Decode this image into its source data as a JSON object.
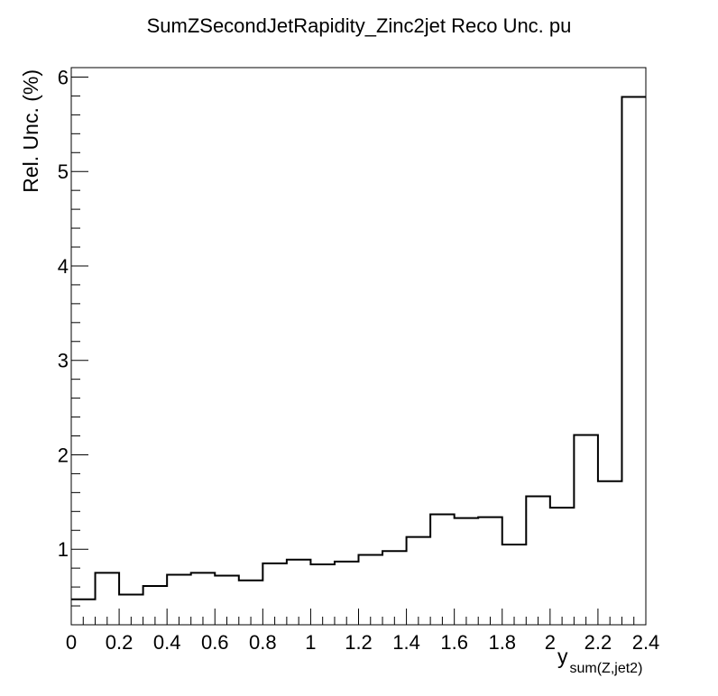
{
  "chart_data": {
    "type": "histogram",
    "title": "SumZSecondJetRapidity_Zinc2jet Reco Unc. pu",
    "xlabel_main": "y",
    "xlabel_sub": "sum(Z,jet2)",
    "ylabel": "Rel. Unc. (%)",
    "xlim": [
      0,
      2.4
    ],
    "ylim": [
      0.2,
      6.1
    ],
    "grid": false,
    "legend": "none",
    "line_color": "#000000",
    "x_ticks": [
      "0",
      "0.2",
      "0.4",
      "0.6",
      "0.8",
      "1",
      "1.2",
      "1.4",
      "1.6",
      "1.8",
      "2",
      "2.2",
      "2.4"
    ],
    "y_ticks": [
      "1",
      "2",
      "3",
      "4",
      "5",
      "6"
    ],
    "bin_edges": [
      0,
      0.1,
      0.2,
      0.3,
      0.4,
      0.5,
      0.6,
      0.7,
      0.8,
      0.9,
      1.0,
      1.1,
      1.2,
      1.3,
      1.4,
      1.5,
      1.6,
      1.7,
      1.8,
      1.9,
      2.0,
      2.1,
      2.2,
      2.3,
      2.4
    ],
    "values": [
      0.47,
      0.75,
      0.52,
      0.61,
      0.73,
      0.75,
      0.72,
      0.67,
      0.85,
      0.89,
      0.84,
      0.87,
      0.94,
      0.98,
      1.13,
      1.37,
      1.33,
      1.34,
      1.05,
      1.56,
      1.44,
      2.21,
      1.72,
      5.79
    ]
  }
}
